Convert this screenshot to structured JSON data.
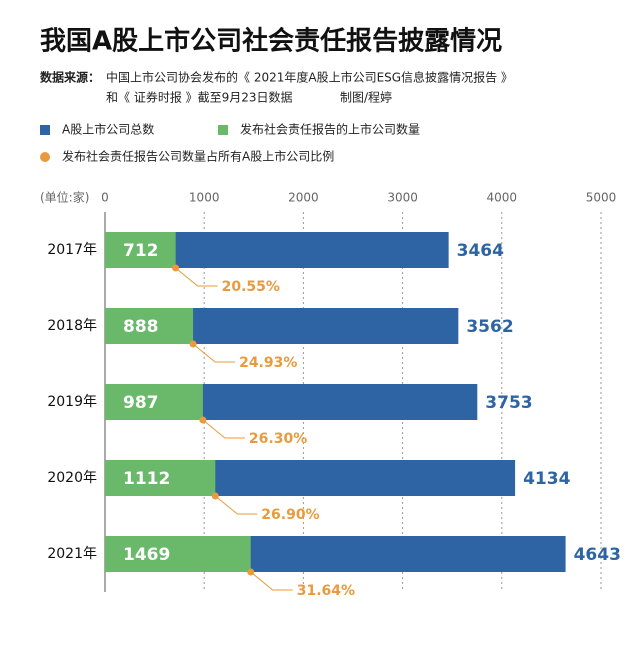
{
  "chart_data": {
    "type": "bar",
    "title": "我国A股上市公司社会责任报告披露情况",
    "source_label": "数据来源：",
    "source_line1": "中国上市公司协会发布的《 2021年度A股上市公司ESG信息披露情况报告 》",
    "source_line2": "和《 证券时报 》截至9月23日数据",
    "credit": "制图/程婷",
    "unit": "(单位:家)",
    "categories": [
      "2017年",
      "2018年",
      "2019年",
      "2020年",
      "2021年"
    ],
    "series": [
      {
        "name": "A股上市公司总数",
        "color": "#2e63a4",
        "values": [
          3464,
          3562,
          3753,
          4134,
          4643
        ]
      },
      {
        "name": "发布社会责任报告的上市公司数量",
        "color": "#6ab96b",
        "values": [
          712,
          888,
          987,
          1112,
          1469
        ]
      },
      {
        "name": "发布社会责任报告公司数量占所有A股上市公司比例",
        "color": "#e99a3c",
        "values": [
          20.55,
          24.93,
          26.3,
          26.9,
          31.64
        ],
        "value_labels": [
          "20.55%",
          "24.93%",
          "26.30%",
          "26.90%",
          "31.64%"
        ]
      }
    ],
    "xlim": [
      0,
      5000
    ],
    "xticks": [
      0,
      1000,
      2000,
      3000,
      4000,
      5000
    ],
    "grid": true
  }
}
